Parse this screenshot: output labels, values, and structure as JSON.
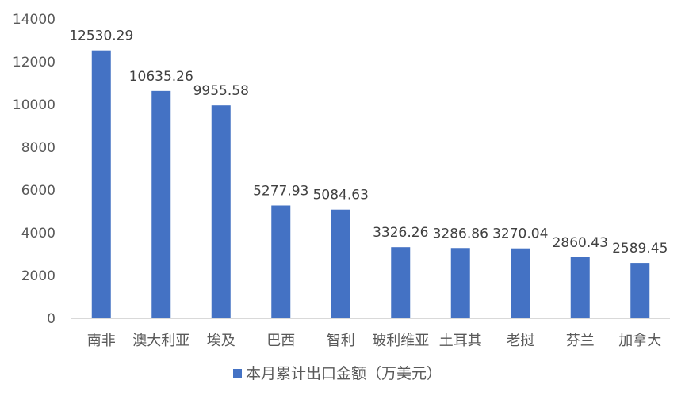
{
  "chart_data": {
    "type": "bar",
    "categories": [
      "南非",
      "澳大利亚",
      "埃及",
      "巴西",
      "智利",
      "玻利维亚",
      "土耳其",
      "老挝",
      "芬兰",
      "加拿大"
    ],
    "series": [
      {
        "name": "本月累计出口金额（万美元）",
        "values": [
          12530.29,
          10635.26,
          9955.58,
          5277.93,
          5084.63,
          3326.26,
          3286.86,
          3270.04,
          2860.43,
          2589.45
        ],
        "labels": [
          "12530.29",
          "10635.26",
          "9955.58",
          "5277.93",
          "5084.63",
          "3326.26",
          "3286.86",
          "3270.04",
          "2860.43",
          "2589.45"
        ],
        "color": "#4472C4"
      }
    ],
    "yticks": [
      "0",
      "2000",
      "4000",
      "6000",
      "8000",
      "10000",
      "12000",
      "14000"
    ],
    "ylim": [
      0,
      14000
    ],
    "title": "",
    "xlabel": "",
    "ylabel": "",
    "grid": false,
    "legend": "bottom"
  }
}
